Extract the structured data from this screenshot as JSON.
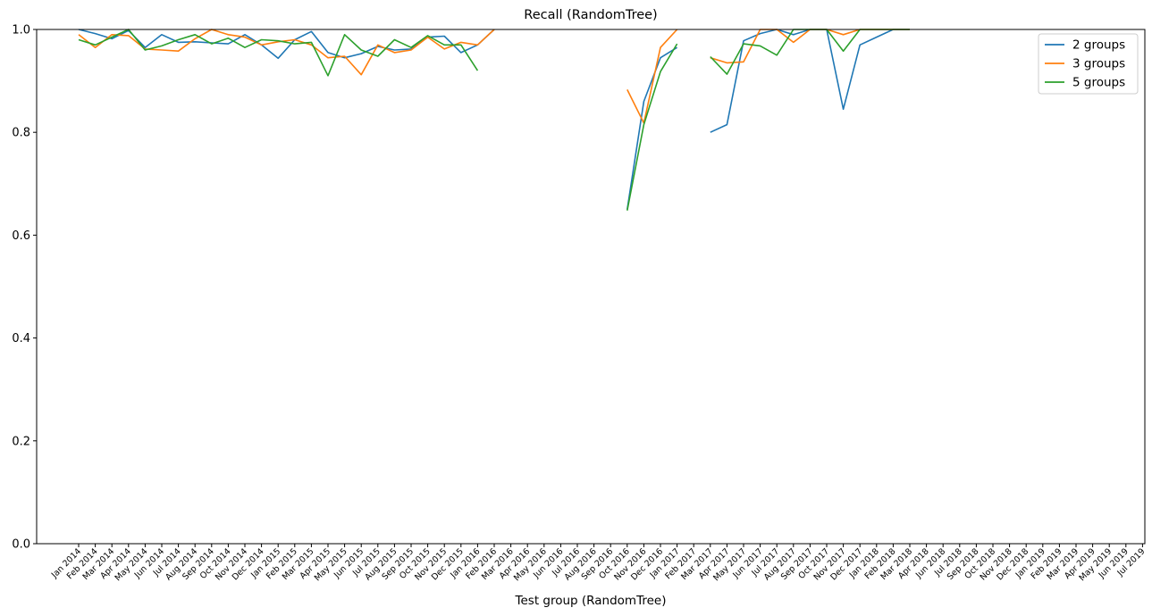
{
  "chart_data": {
    "type": "line",
    "title": "Recall (RandomTree)",
    "xlabel": "Test group (RandomTree)",
    "ylabel": "",
    "ylim": [
      0.0,
      1.0
    ],
    "yticks": [
      "0.0",
      "0.2",
      "0.4",
      "0.6",
      "0.8",
      "1.0"
    ],
    "grid": false,
    "legend_position": "top-right",
    "categories": [
      "Jan 2014",
      "Feb 2014",
      "Mar 2014",
      "Apr 2014",
      "May 2014",
      "Jun 2014",
      "Jul 2014",
      "Aug 2014",
      "Sep 2014",
      "Oct 2014",
      "Nov 2014",
      "Dec 2014",
      "Jan 2015",
      "Feb 2015",
      "Mar 2015",
      "Apr 2015",
      "May 2015",
      "Jun 2015",
      "Jul 2015",
      "Aug 2015",
      "Sep 2015",
      "Oct 2015",
      "Nov 2015",
      "Dec 2015",
      "Jan 2016",
      "Feb 2016",
      "Mar 2016",
      "Apr 2016",
      "May 2016",
      "Jun 2016",
      "Jul 2016",
      "Aug 2016",
      "Sep 2016",
      "Oct 2016",
      "Nov 2016",
      "Dec 2016",
      "Jan 2017",
      "Feb 2017",
      "Mar 2017",
      "Apr 2017",
      "May 2017",
      "Jun 2017",
      "Jul 2017",
      "Aug 2017",
      "Sep 2017",
      "Oct 2017",
      "Nov 2017",
      "Dec 2017",
      "Jan 2018",
      "Feb 2018",
      "Mar 2018",
      "Apr 2018",
      "Jun 2018",
      "Jul 2018",
      "Sep 2018",
      "Oct 2018",
      "Nov 2018",
      "Dec 2018",
      "Jan 2019",
      "Feb 2019",
      "Mar 2019",
      "Apr 2019",
      "May 2019",
      "Jun 2019",
      "Jul 2019"
    ],
    "series": [
      {
        "name": "2 groups",
        "color": "#1f77b4",
        "values": [
          1.0,
          0.992,
          0.982,
          0.998,
          0.965,
          0.99,
          0.975,
          0.976,
          0.974,
          0.972,
          0.99,
          0.97,
          0.944,
          0.98,
          0.996,
          0.955,
          0.945,
          0.953,
          0.967,
          0.96,
          0.962,
          0.985,
          0.987,
          0.955,
          0.97,
          1.0,
          null,
          null,
          null,
          null,
          null,
          null,
          null,
          0.65,
          0.86,
          0.945,
          0.965,
          null,
          0.8,
          0.815,
          0.978,
          0.992,
          1.0,
          0.99,
          1.0,
          1.0,
          0.845,
          0.97,
          0.985,
          1.0,
          1.0,
          null,
          null,
          null,
          null,
          null,
          null,
          null,
          null,
          null,
          null,
          null,
          null,
          null,
          null
        ]
      },
      {
        "name": "3 groups",
        "color": "#ff7f0e",
        "values": [
          0.99,
          0.965,
          0.99,
          0.988,
          0.962,
          0.96,
          0.958,
          0.982,
          1.0,
          0.99,
          0.985,
          0.97,
          0.976,
          0.98,
          0.97,
          0.945,
          0.948,
          0.912,
          0.97,
          0.955,
          0.96,
          0.985,
          0.962,
          0.975,
          0.97,
          1.0,
          null,
          null,
          null,
          null,
          null,
          null,
          null,
          0.883,
          0.818,
          0.965,
          1.0,
          null,
          0.945,
          0.935,
          0.937,
          1.0,
          1.0,
          0.975,
          1.0,
          1.0,
          0.99,
          1.0,
          1.0,
          1.0,
          1.0,
          null,
          null,
          null,
          null,
          null,
          null,
          null,
          null,
          null,
          null,
          null,
          null,
          null,
          null
        ]
      },
      {
        "name": "5 groups",
        "color": "#2ca02c",
        "values": [
          0.98,
          0.97,
          0.985,
          1.0,
          0.96,
          0.968,
          0.98,
          0.99,
          0.972,
          0.983,
          0.965,
          0.98,
          0.978,
          0.972,
          0.975,
          0.91,
          0.99,
          0.96,
          0.948,
          0.98,
          0.965,
          0.988,
          0.97,
          0.97,
          0.92,
          null,
          null,
          null,
          null,
          null,
          null,
          null,
          null,
          0.648,
          0.815,
          0.918,
          0.972,
          null,
          0.947,
          0.913,
          0.972,
          0.968,
          0.95,
          1.0,
          1.0,
          1.0,
          0.958,
          1.0,
          1.0,
          1.0,
          1.0,
          null,
          null,
          null,
          null,
          null,
          null,
          null,
          null,
          null,
          null,
          null,
          null,
          null,
          null
        ]
      }
    ]
  }
}
